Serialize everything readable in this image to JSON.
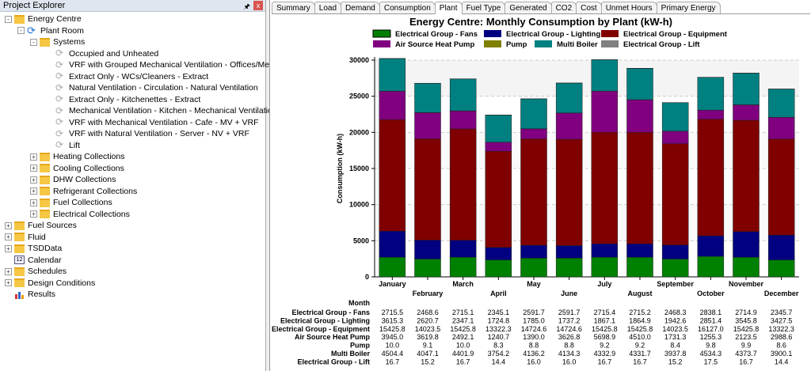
{
  "explorer": {
    "title": "Project Explorer",
    "pin": "🖈",
    "close": "x",
    "items": [
      {
        "label": "Energy Centre",
        "level": 0,
        "icon": "folder-icon",
        "exp": "-"
      },
      {
        "label": "Plant Room",
        "level": 1,
        "icon": "plant-room-icon",
        "exp": "-"
      },
      {
        "label": "Systems",
        "level": 2,
        "icon": "folder-icon",
        "exp": "-"
      },
      {
        "label": "Occupied and Unheated",
        "level": 3,
        "icon": "system-icon"
      },
      {
        "label": "VRF with Grouped Mechanical Ventilation - Offices/Meeting",
        "level": 3,
        "icon": "system-icon"
      },
      {
        "label": "Extract Only - WCs/Cleaners - Extract",
        "level": 3,
        "icon": "system-icon"
      },
      {
        "label": "Natural Ventilation - Circulation - Natural Ventilation",
        "level": 3,
        "icon": "system-icon"
      },
      {
        "label": "Extract Only - Kitchenettes - Extract",
        "level": 3,
        "icon": "system-icon"
      },
      {
        "label": "Mechanical Ventilation - Kitchen - Mechanical Ventilation",
        "level": 3,
        "icon": "system-icon"
      },
      {
        "label": "VRF with Mechanical Ventilation - Cafe - MV + VRF",
        "level": 3,
        "icon": "system-icon"
      },
      {
        "label": "VRF with Natural Ventilation - Server - NV + VRF",
        "level": 3,
        "icon": "system-icon"
      },
      {
        "label": "Lift",
        "level": 3,
        "icon": "system-icon"
      },
      {
        "label": "Heating Collections",
        "level": 2,
        "icon": "folder-icon",
        "exp": "+"
      },
      {
        "label": "Cooling Collections",
        "level": 2,
        "icon": "folder-icon",
        "exp": "+"
      },
      {
        "label": "DHW Collections",
        "level": 2,
        "icon": "folder-icon",
        "exp": "+"
      },
      {
        "label": "Refrigerant Collections",
        "level": 2,
        "icon": "folder-icon",
        "exp": "+"
      },
      {
        "label": "Fuel Collections",
        "level": 2,
        "icon": "folder-icon",
        "exp": "+"
      },
      {
        "label": "Electrical Collections",
        "level": 2,
        "icon": "folder-icon",
        "exp": "+"
      },
      {
        "label": "Fuel Sources",
        "level": 0,
        "icon": "folder-icon",
        "exp": "+"
      },
      {
        "label": "Fluid",
        "level": 0,
        "icon": "folder-icon",
        "exp": "+"
      },
      {
        "label": "TSDData",
        "level": 0,
        "icon": "folder-icon",
        "exp": "+"
      },
      {
        "label": "Calendar",
        "level": 0,
        "icon": "calendar-icon",
        "cal": "12"
      },
      {
        "label": "Schedules",
        "level": 0,
        "icon": "folder-icon",
        "exp": "+"
      },
      {
        "label": "Design Conditions",
        "level": 0,
        "icon": "folder-icon",
        "exp": "+"
      },
      {
        "label": "Results",
        "level": 0,
        "icon": "results-icon"
      }
    ]
  },
  "tabs": [
    "Summary",
    "Load",
    "Demand",
    "Consumption",
    "Plant",
    "Fuel Type",
    "Generated",
    "CO2",
    "Cost",
    "Unmet Hours",
    "Primary Energy"
  ],
  "active_tab": "Plant",
  "chart_data": {
    "type": "bar",
    "stacked": true,
    "title": "Energy Centre: Monthly Consumption by Plant (kW-h)",
    "xlabel": "Month",
    "ylabel": "Consumption (kW-h)",
    "ylim": [
      0,
      30000
    ],
    "yticks": [
      "0",
      "5000",
      "10000",
      "15000",
      "20000",
      "25000",
      "30000"
    ],
    "grid": true,
    "legend": "top",
    "categories": [
      "January",
      "February",
      "March",
      "April",
      "May",
      "June",
      "July",
      "August",
      "September",
      "October",
      "November",
      "December"
    ],
    "series": [
      {
        "name": "Electrical Group - Fans",
        "color": "#008000",
        "values": [
          "2715.5",
          "2468.6",
          "2715.1",
          "2345.1",
          "2591.7",
          "2591.7",
          "2715.4",
          "2715.2",
          "2468.3",
          "2838.1",
          "2714.9",
          "2345.7"
        ]
      },
      {
        "name": "Electrical Group - Lighting",
        "color": "#000080",
        "values": [
          "3615.3",
          "2620.7",
          "2347.1",
          "1724.8",
          "1785.0",
          "1737.2",
          "1867.1",
          "1864.9",
          "1942.6",
          "2851.4",
          "3545.8",
          "3427.5"
        ]
      },
      {
        "name": "Electrical Group - Equipment",
        "color": "#800000",
        "values": [
          "15425.8",
          "14023.5",
          "15425.8",
          "13322.3",
          "14724.6",
          "14724.6",
          "15425.8",
          "15425.8",
          "14023.5",
          "16127.0",
          "15425.8",
          "13322.3"
        ]
      },
      {
        "name": "Air Source Heat Pump",
        "color": "#800080",
        "values": [
          "3945.0",
          "3619.8",
          "2492.1",
          "1240.7",
          "1390.0",
          "3626.8",
          "5698.9",
          "4510.0",
          "1731.3",
          "1255.3",
          "2123.5",
          "2988.6"
        ]
      },
      {
        "name": "Pump",
        "color": "#808000",
        "values": [
          "10.0",
          "9.1",
          "10.0",
          "8.3",
          "8.8",
          "8.8",
          "9.2",
          "9.2",
          "8.4",
          "9.8",
          "9.9",
          "8.6"
        ]
      },
      {
        "name": "Multi Boiler",
        "color": "#008080",
        "values": [
          "4504.4",
          "4047.1",
          "4401.9",
          "3754.2",
          "4136.2",
          "4134.3",
          "4332.9",
          "4331.7",
          "3937.8",
          "4534.3",
          "4373.7",
          "3900.1"
        ]
      },
      {
        "name": "Electrical Group - Lift",
        "color": "#808080",
        "values": [
          "16.7",
          "15.2",
          "16.7",
          "14.4",
          "16.0",
          "16.0",
          "16.7",
          "16.7",
          "15.2",
          "17.5",
          "16.7",
          "14.4"
        ]
      }
    ]
  }
}
